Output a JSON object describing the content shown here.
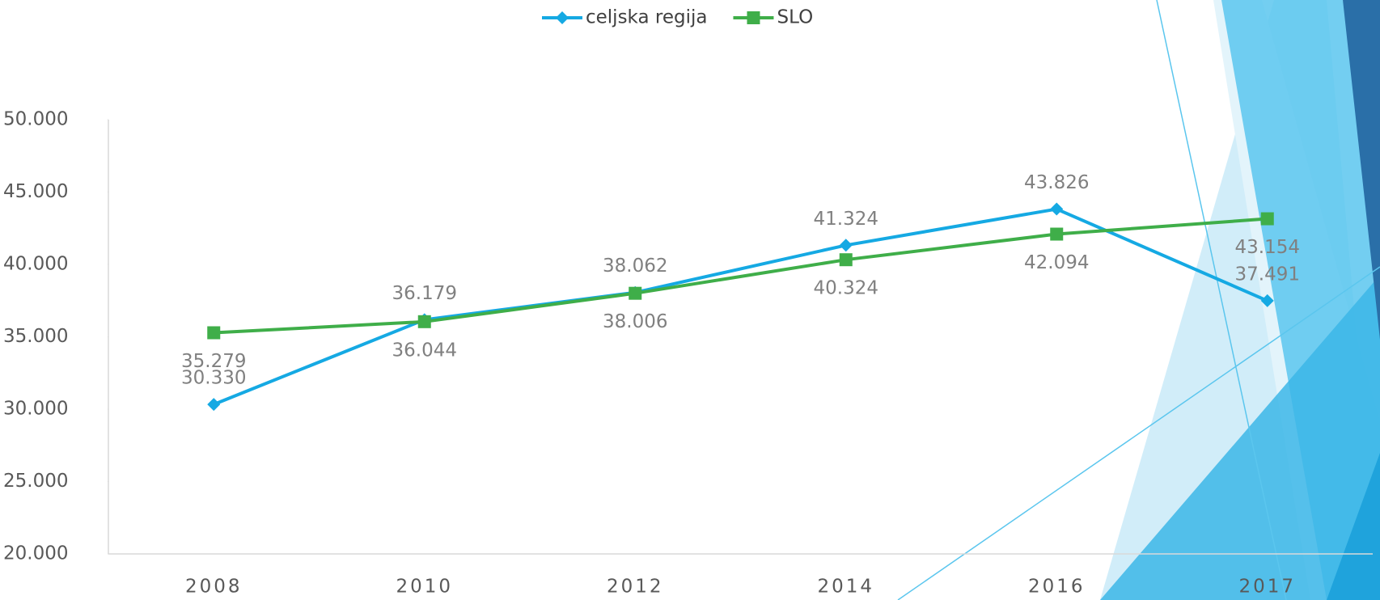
{
  "chart_data": {
    "type": "line",
    "categories": [
      "2008",
      "2010",
      "2012",
      "2014",
      "2016",
      "2017"
    ],
    "series": [
      {
        "name": "celjska regija",
        "color": "#15a9e3",
        "marker": "diamond",
        "values": [
          30330,
          36179,
          38062,
          41324,
          43826,
          37491
        ],
        "value_labels": [
          "30.330",
          "36.179",
          "38.062",
          "41.324",
          "43.826",
          "37.491"
        ]
      },
      {
        "name": "SLO",
        "color": "#3fae49",
        "marker": "square",
        "values": [
          35279,
          36044,
          38006,
          40324,
          42094,
          43154
        ],
        "value_labels": [
          "35.279",
          "36.044",
          "38.006",
          "40.324",
          "42.094",
          "43.154"
        ]
      }
    ],
    "ylim": [
      20000,
      50000
    ],
    "yticks": [
      {
        "value": 20000,
        "label": "20.000"
      },
      {
        "value": 25000,
        "label": "25.000"
      },
      {
        "value": 30000,
        "label": "30.000"
      },
      {
        "value": 35000,
        "label": "35.000"
      },
      {
        "value": 40000,
        "label": "40.000"
      },
      {
        "value": 45000,
        "label": "45.000"
      },
      {
        "value": 50000,
        "label": "50.000"
      }
    ],
    "legend": "top"
  }
}
